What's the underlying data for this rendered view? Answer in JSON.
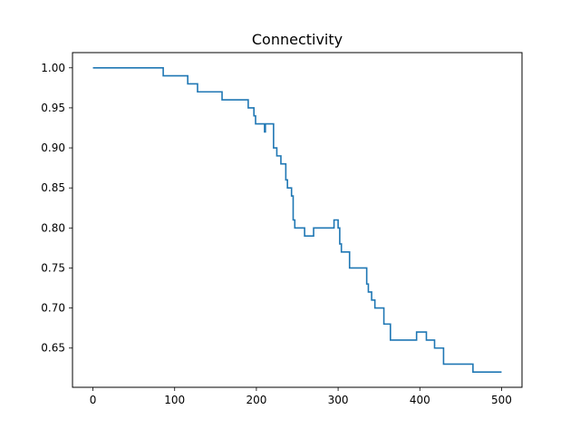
{
  "chart_data": {
    "type": "line",
    "title": "Connectivity",
    "xlabel": "",
    "ylabel": "",
    "xlim": [
      -25,
      525
    ],
    "ylim": [
      0.601,
      1.019
    ],
    "xticks": [
      0,
      100,
      200,
      300,
      400,
      500
    ],
    "xtick_labels": [
      "0",
      "100",
      "200",
      "300",
      "400",
      "500"
    ],
    "yticks": [
      0.65,
      0.7,
      0.75,
      0.8,
      0.85,
      0.9,
      0.95,
      1.0
    ],
    "ytick_labels": [
      "0.65",
      "0.70",
      "0.75",
      "0.80",
      "0.85",
      "0.90",
      "0.95",
      "1.00"
    ],
    "grid": false,
    "legend": "none",
    "series": [
      {
        "color": "#1f77b4",
        "step": true,
        "points": [
          [
            0,
            1.0
          ],
          [
            86,
            1.0
          ],
          [
            86,
            0.99
          ],
          [
            116,
            0.99
          ],
          [
            116,
            0.98
          ],
          [
            128,
            0.98
          ],
          [
            128,
            0.97
          ],
          [
            158,
            0.97
          ],
          [
            158,
            0.96
          ],
          [
            190,
            0.96
          ],
          [
            190,
            0.95
          ],
          [
            197,
            0.95
          ],
          [
            197,
            0.94
          ],
          [
            199,
            0.94
          ],
          [
            199,
            0.93
          ],
          [
            210,
            0.93
          ],
          [
            210,
            0.92
          ],
          [
            211,
            0.92
          ],
          [
            211,
            0.93
          ],
          [
            221,
            0.93
          ],
          [
            221,
            0.9
          ],
          [
            225,
            0.9
          ],
          [
            225,
            0.89
          ],
          [
            230,
            0.89
          ],
          [
            230,
            0.88
          ],
          [
            236,
            0.88
          ],
          [
            236,
            0.86
          ],
          [
            238,
            0.86
          ],
          [
            238,
            0.85
          ],
          [
            243,
            0.85
          ],
          [
            243,
            0.84
          ],
          [
            245,
            0.84
          ],
          [
            245,
            0.81
          ],
          [
            247,
            0.81
          ],
          [
            247,
            0.8
          ],
          [
            259,
            0.8
          ],
          [
            259,
            0.79
          ],
          [
            270,
            0.79
          ],
          [
            270,
            0.8
          ],
          [
            295,
            0.8
          ],
          [
            295,
            0.81
          ],
          [
            300,
            0.81
          ],
          [
            300,
            0.8
          ],
          [
            302,
            0.8
          ],
          [
            302,
            0.78
          ],
          [
            304,
            0.78
          ],
          [
            304,
            0.77
          ],
          [
            314,
            0.77
          ],
          [
            314,
            0.75
          ],
          [
            335,
            0.75
          ],
          [
            335,
            0.73
          ],
          [
            337,
            0.73
          ],
          [
            337,
            0.72
          ],
          [
            341,
            0.72
          ],
          [
            341,
            0.71
          ],
          [
            345,
            0.71
          ],
          [
            345,
            0.7
          ],
          [
            356,
            0.7
          ],
          [
            356,
            0.68
          ],
          [
            364,
            0.68
          ],
          [
            364,
            0.66
          ],
          [
            396,
            0.66
          ],
          [
            396,
            0.67
          ],
          [
            408,
            0.67
          ],
          [
            408,
            0.66
          ],
          [
            418,
            0.66
          ],
          [
            418,
            0.65
          ],
          [
            429,
            0.65
          ],
          [
            429,
            0.63
          ],
          [
            465,
            0.63
          ],
          [
            465,
            0.62
          ],
          [
            500,
            0.62
          ]
        ]
      }
    ]
  }
}
